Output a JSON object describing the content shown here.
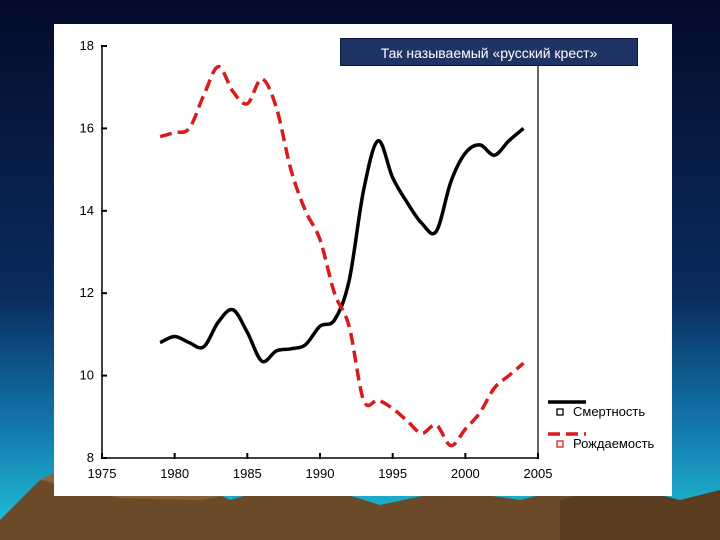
{
  "colors": {
    "background_top": "#050d2e",
    "background_mid": "#0a3a6e",
    "background_bottom": "#1aa0c8",
    "panel": "#ffffff",
    "title_box": "#1f3364",
    "mortality_line": "#000000",
    "birth_line": "#d81b1b"
  },
  "chart_data": {
    "type": "line",
    "title": "Так называемый «русский крест»",
    "xlabel": "",
    "ylabel": "",
    "xlim": [
      1975,
      2005
    ],
    "ylim": [
      8,
      18
    ],
    "xticks": [
      1975,
      1980,
      1985,
      1990,
      1995,
      2000,
      2005
    ],
    "yticks": [
      8,
      10,
      12,
      14,
      16,
      18
    ],
    "legend_position": "bottom-right",
    "series": [
      {
        "name": "Смертность",
        "style": "solid",
        "x": [
          1979,
          1980,
          1981,
          1982,
          1983,
          1984,
          1985,
          1986,
          1987,
          1988,
          1989,
          1990,
          1991,
          1992,
          1993,
          1994,
          1995,
          1996,
          1997,
          1998,
          1999,
          2000,
          2001,
          2002,
          2003,
          2004
        ],
        "values": [
          10.8,
          10.95,
          10.8,
          10.7,
          11.3,
          11.6,
          11.05,
          10.35,
          10.6,
          10.65,
          10.75,
          11.2,
          11.35,
          12.3,
          14.5,
          15.7,
          14.8,
          14.2,
          13.7,
          13.5,
          14.7,
          15.4,
          15.6,
          15.35,
          15.7,
          16.0
        ]
      },
      {
        "name": "Рождаемость",
        "style": "dashed",
        "x": [
          1979,
          1980,
          1981,
          1982,
          1983,
          1984,
          1985,
          1986,
          1987,
          1988,
          1989,
          1990,
          1991,
          1992,
          1993,
          1994,
          1995,
          1996,
          1997,
          1998,
          1999,
          2000,
          2001,
          2002,
          2003,
          2004
        ],
        "values": [
          15.8,
          15.9,
          16.0,
          16.8,
          17.5,
          16.9,
          16.6,
          17.2,
          16.5,
          15.0,
          14.0,
          13.3,
          12.0,
          11.2,
          9.4,
          9.4,
          9.2,
          8.9,
          8.6,
          8.8,
          8.3,
          8.7,
          9.1,
          9.7,
          10.0,
          10.3
        ]
      }
    ]
  }
}
